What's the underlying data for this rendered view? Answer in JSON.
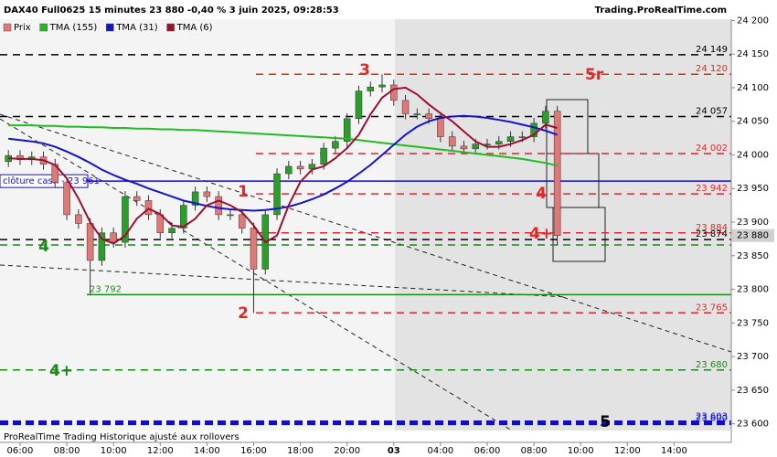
{
  "chart_data": {
    "type": "candlestick",
    "title": "DAX40 Full0625 15 minutes 23 880 -0,40 % 3 juin 2025, 09:28:53",
    "source": "Trading.ProRealTime.com",
    "footer": "ProRealTime Trading  Historique ajusté aux rollovers",
    "price_name": "Prix",
    "up_color": "#2a9d2a",
    "down_color": "#e07878",
    "current": {
      "value": 23880,
      "label": "23 880"
    },
    "x": [
      -0.5,
      0,
      0.5,
      1,
      1.5,
      2,
      2.5,
      3,
      3.5,
      4,
      4.5,
      5,
      5.5,
      6,
      6.5,
      7,
      7.5,
      8,
      8.5,
      9,
      9.5,
      10,
      10.5,
      11,
      11.5,
      12,
      12.5,
      13,
      13.5,
      14,
      14.5,
      15,
      15.5,
      16,
      16.5,
      17,
      17.5,
      18,
      18.5,
      19,
      19.5,
      20,
      20.5,
      21,
      21.5,
      22,
      22.5,
      23
    ],
    "open": [
      23990,
      23999,
      23993,
      23997,
      23986,
      23959,
      23911,
      23898,
      23843,
      23884,
      23870,
      23938,
      23932,
      23911,
      23884,
      23891,
      23925,
      23945,
      23938,
      23911,
      23911,
      23891,
      23830,
      23911,
      23972,
      23983,
      23979,
      23986,
      24010,
      24020,
      24054,
      24095,
      24101,
      24104,
      24081,
      24061,
      24061,
      24054,
      24027,
      24013,
      24009,
      24016,
      24016,
      24020,
      24027,
      24027,
      24047,
      24065
    ],
    "high": [
      24007,
      24007,
      24005,
      24005,
      23994,
      23967,
      23919,
      23906,
      23892,
      23892,
      23946,
      23946,
      23940,
      23919,
      23899,
      23933,
      23953,
      23953,
      23946,
      23919,
      23919,
      23899,
      23919,
      23980,
      23991,
      23991,
      23994,
      24018,
      24028,
      24062,
      24103,
      24109,
      24120,
      24112,
      24089,
      24069,
      24069,
      24062,
      24035,
      24021,
      24024,
      24024,
      24028,
      24035,
      24035,
      24055,
      24073,
      24073
    ],
    "low": [
      23982,
      23985,
      23985,
      23978,
      23951,
      23903,
      23890,
      23792,
      23835,
      23862,
      23862,
      23924,
      23903,
      23876,
      23876,
      23883,
      23917,
      23930,
      23903,
      23903,
      23883,
      23765,
      23822,
      23903,
      23964,
      23971,
      23971,
      23978,
      24002,
      24012,
      24046,
      24087,
      24093,
      24073,
      24053,
      24053,
      24046,
      24019,
      24005,
      24001,
      24001,
      24008,
      24008,
      24012,
      24019,
      24019,
      24039,
      23865
    ],
    "close": [
      23999,
      23993,
      23997,
      23986,
      23959,
      23911,
      23898,
      23843,
      23884,
      23870,
      23938,
      23932,
      23911,
      23884,
      23891,
      23925,
      23945,
      23938,
      23911,
      23911,
      23891,
      23830,
      23911,
      23972,
      23983,
      23979,
      23986,
      24010,
      24020,
      24054,
      24095,
      24101,
      24104,
      24081,
      24061,
      24061,
      24054,
      24027,
      24013,
      24009,
      24016,
      24016,
      24020,
      24027,
      24027,
      24047,
      24065,
      23880
    ],
    "series": [
      {
        "name": "TMA (155)",
        "color": "#22bb22",
        "values": [
          24044,
          24044,
          24044,
          24043,
          24043,
          24042,
          24042,
          24041,
          24041,
          24040,
          24040,
          24039,
          24039,
          24038,
          24038,
          24037,
          24037,
          24036,
          24035,
          24034,
          24033,
          24032,
          24031,
          24030,
          24029,
          24028,
          24027,
          24026,
          24025,
          24024,
          24022,
          24020,
          24018,
          24016,
          24014,
          24012,
          24010,
          24008,
          24006,
          24004,
          24002,
          24000,
          23998,
          23996,
          23994,
          23991,
          23988,
          23984
        ]
      },
      {
        "name": "TMA (31)",
        "color": "#1414c8",
        "values": [
          24024,
          24022,
          24020,
          24017,
          24012,
          24005,
          23997,
          23988,
          23978,
          23970,
          23963,
          23957,
          23950,
          23944,
          23938,
          23932,
          23928,
          23924,
          23921,
          23919,
          23918,
          23917,
          23918,
          23920,
          23923,
          23928,
          23934,
          23941,
          23950,
          23960,
          23972,
          23985,
          24000,
          24015,
          24030,
          24042,
          24050,
          24055,
          24057,
          24058,
          24057,
          24055,
          24052,
          24049,
          24045,
          24041,
          24036,
          24030
        ]
      },
      {
        "name": "TMA (6)",
        "color": "#9a1030",
        "values": [
          23995,
          23994,
          23994,
          23992,
          23985,
          23965,
          23935,
          23900,
          23875,
          23868,
          23880,
          23905,
          23920,
          23912,
          23895,
          23893,
          23905,
          23925,
          23932,
          23925,
          23915,
          23895,
          23870,
          23880,
          23925,
          23960,
          23978,
          23983,
          23995,
          24010,
          24030,
          24060,
          24085,
          24098,
          24100,
          24090,
          24075,
          24062,
          24050,
          24035,
          24020,
          24012,
          24012,
          24016,
          24022,
          24030,
          24045,
          24040
        ]
      }
    ],
    "levels": [
      {
        "value": 24149,
        "label": "24 149",
        "color": "#000000",
        "style": "dashed"
      },
      {
        "value": 24120,
        "label": "24 120",
        "color": "#e02828",
        "style": "dashed"
      },
      {
        "value": 24057,
        "label": "24 057",
        "color": "#000000",
        "style": "dashed"
      },
      {
        "value": 24002,
        "label": "24 002",
        "color": "#e02828",
        "style": "dashed"
      },
      {
        "value": 23961,
        "label": "clôture cash - 23 961",
        "color": "#1010c0",
        "style": "solid",
        "label_side": "left"
      },
      {
        "value": 23942,
        "label": "23 942",
        "color": "#e02828",
        "style": "dashed"
      },
      {
        "value": 23884,
        "label": "23 884",
        "color": "#e02828",
        "style": "dashed"
      },
      {
        "value": 23874,
        "label": "23 874",
        "color": "#000000",
        "style": "dashed"
      },
      {
        "value": 23866,
        "color": "#1a8a1a",
        "style": "dashed"
      },
      {
        "value": 23792,
        "label": "23 792",
        "color": "#1a8a1a",
        "style": "solid",
        "label_side": "left"
      },
      {
        "value": 23765,
        "label": "23 765",
        "color": "#e02828",
        "style": "dashed"
      },
      {
        "value": 23680,
        "label": "23 680",
        "color": "#1a8a1a",
        "style": "dashed"
      },
      {
        "value": 23603,
        "label": "23 603",
        "color": "#1010c0",
        "style": "dashed"
      },
      {
        "value": 23600,
        "label": "23 600",
        "color": "#1010c0",
        "style": "dashed"
      }
    ],
    "annotations": [
      {
        "text": "4",
        "color": "#1a8a1a"
      },
      {
        "text": "4+",
        "color": "#1a8a1a"
      },
      {
        "text": "1",
        "color": "#e02828"
      },
      {
        "text": "2",
        "color": "#e02828"
      },
      {
        "text": "3",
        "color": "#e02828"
      },
      {
        "text": "5r",
        "color": "#e02828"
      },
      {
        "text": "4",
        "color": "#e02828"
      },
      {
        "text": "4+",
        "color": "#e02828"
      },
      {
        "text": "5",
        "color": "#000000"
      }
    ],
    "ylim": [
      23590,
      24210
    ],
    "yticks": [
      {
        "value": 23600,
        "label": "23 600"
      },
      {
        "value": 23650,
        "label": "23 650"
      },
      {
        "value": 23700,
        "label": "23 700"
      },
      {
        "value": 23750,
        "label": "23 750"
      },
      {
        "value": 23800,
        "label": "23 800"
      },
      {
        "value": 23850,
        "label": "23 850"
      },
      {
        "value": 23900,
        "label": "23 900"
      },
      {
        "value": 23950,
        "label": "23 950"
      },
      {
        "value": 24000,
        "label": "24 000"
      },
      {
        "value": 24050,
        "label": "24 050"
      },
      {
        "value": 24100,
        "label": "24 100"
      },
      {
        "value": 24150,
        "label": "24 150"
      },
      {
        "value": 24200,
        "label": "24 200"
      }
    ],
    "xlim": [
      -0.86,
      30.45
    ],
    "xticks": [
      {
        "value": 0,
        "label": "06:00"
      },
      {
        "value": 2,
        "label": "08:00"
      },
      {
        "value": 4,
        "label": "10:00"
      },
      {
        "value": 6,
        "label": "12:00"
      },
      {
        "value": 8,
        "label": "14:00"
      },
      {
        "value": 10,
        "label": "16:00"
      },
      {
        "value": 12,
        "label": "18:00"
      },
      {
        "value": 14,
        "label": "20:00"
      },
      {
        "value": 16,
        "label": "03"
      },
      {
        "value": 18,
        "label": "04:00"
      },
      {
        "value": 20,
        "label": "06:00"
      },
      {
        "value": 22,
        "label": "08:00"
      },
      {
        "value": 24,
        "label": "10:00"
      },
      {
        "value": 26,
        "label": "12:00"
      },
      {
        "value": 28,
        "label": "14:00"
      }
    ]
  }
}
